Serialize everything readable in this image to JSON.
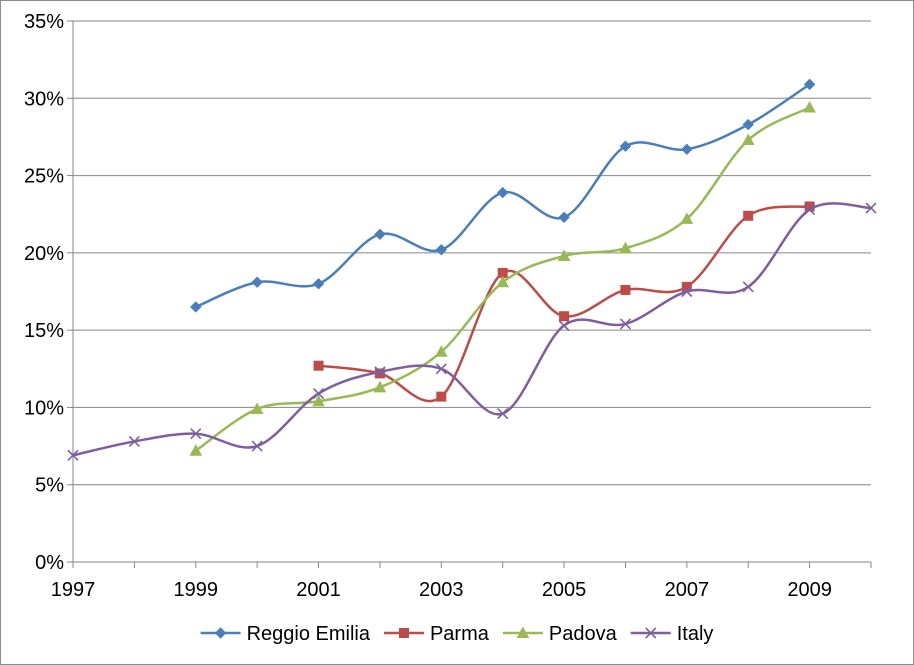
{
  "chart_data": {
    "type": "line",
    "title": "",
    "xlabel": "",
    "ylabel": "",
    "x": [
      1997,
      1998,
      1999,
      2000,
      2001,
      2002,
      2003,
      2004,
      2005,
      2006,
      2007,
      2008,
      2009,
      2010
    ],
    "x_tick_labels": [
      "1997",
      "1999",
      "2001",
      "2003",
      "2005",
      "2007",
      "2009"
    ],
    "y_tick_labels": [
      "0%",
      "5%",
      "10%",
      "15%",
      "20%",
      "25%",
      "30%",
      "35%"
    ],
    "ylim": [
      0,
      35
    ],
    "y_unit": "%",
    "grid": "horizontal",
    "smooth": true,
    "legend_position": "bottom",
    "series": [
      {
        "name": "Reggio Emilia",
        "color": "#4a7ebb",
        "marker": "diamond",
        "values": [
          null,
          null,
          16.5,
          18.1,
          18.0,
          21.2,
          20.2,
          23.9,
          22.3,
          26.9,
          26.7,
          28.3,
          30.9,
          null
        ]
      },
      {
        "name": "Parma",
        "color": "#be4b48",
        "marker": "square",
        "values": [
          null,
          null,
          null,
          null,
          12.7,
          12.2,
          10.7,
          18.7,
          15.9,
          17.6,
          17.8,
          22.4,
          23.0,
          null
        ]
      },
      {
        "name": "Padova",
        "color": "#98b954",
        "marker": "triangle",
        "values": [
          null,
          null,
          7.2,
          9.9,
          10.4,
          11.3,
          13.6,
          18.1,
          19.8,
          20.3,
          22.2,
          27.3,
          29.4,
          null
        ]
      },
      {
        "name": "Italy",
        "color": "#7d5fa0",
        "marker": "x",
        "values": [
          6.9,
          7.8,
          8.3,
          7.5,
          10.9,
          12.3,
          12.5,
          9.6,
          15.3,
          15.4,
          17.5,
          17.8,
          22.8,
          22.9
        ]
      }
    ]
  }
}
